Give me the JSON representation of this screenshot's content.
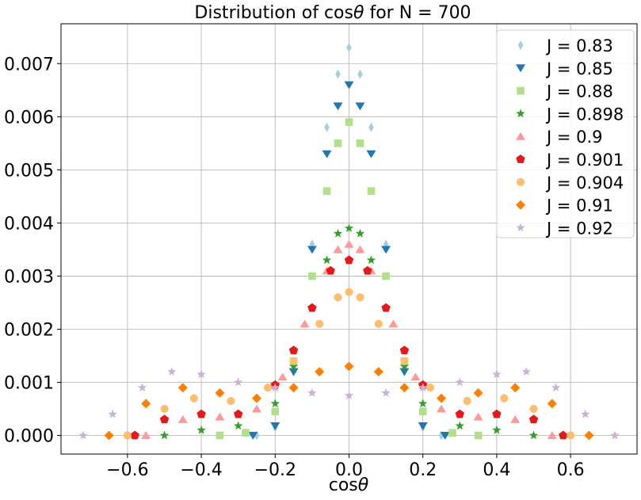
{
  "chart_data": {
    "type": "scatter",
    "title_prefix": "Distribution of  cos",
    "title_theta": "θ",
    "title_suffix": " for N =  700",
    "xlabel_prefix": "cos",
    "xlabel_theta": "θ",
    "ylabel": "",
    "xlim": [
      -0.78,
      0.78
    ],
    "ylim": [
      -0.00035,
      0.00775
    ],
    "x_ticks": [
      -0.6,
      -0.4,
      -0.2,
      0.0,
      0.2,
      0.4,
      0.6
    ],
    "x_tick_labels": [
      "−0.6",
      "−0.4",
      "−0.2",
      "0.0",
      "0.2",
      "0.4",
      "0.6"
    ],
    "y_ticks": [
      0.0,
      0.001,
      0.002,
      0.003,
      0.004,
      0.005,
      0.006,
      0.007
    ],
    "y_tick_labels": [
      "0.000",
      "0.001",
      "0.002",
      "0.003",
      "0.004",
      "0.005",
      "0.006",
      "0.007"
    ],
    "grid": true,
    "legend_position": "top-right",
    "series": [
      {
        "name": "J = 0.83",
        "color": "#a6cee3",
        "marker": "thin-diamond",
        "x": [
          -0.25,
          -0.2,
          -0.15,
          -0.1,
          -0.06,
          -0.03,
          0.0,
          0.03,
          0.06,
          0.1,
          0.15,
          0.2,
          0.25
        ],
        "y": [
          0.0,
          0.00015,
          0.0012,
          0.0036,
          0.0058,
          0.0068,
          0.0073,
          0.0068,
          0.0058,
          0.0036,
          0.0012,
          0.00015,
          0.0
        ]
      },
      {
        "name": "J = 0.85",
        "color": "#1f78b4",
        "marker": "triangle-down",
        "x": [
          -0.26,
          -0.2,
          -0.15,
          -0.1,
          -0.06,
          -0.03,
          0.0,
          0.03,
          0.06,
          0.1,
          0.15,
          0.2,
          0.26
        ],
        "y": [
          0.0,
          0.00018,
          0.0012,
          0.0035,
          0.0053,
          0.0062,
          0.0066,
          0.0062,
          0.0053,
          0.0035,
          0.0012,
          0.00018,
          0.0
        ]
      },
      {
        "name": "J = 0.88",
        "color": "#b2df8a",
        "marker": "square",
        "x": [
          -0.35,
          -0.28,
          -0.2,
          -0.15,
          -0.1,
          -0.06,
          -0.03,
          0.0,
          0.03,
          0.06,
          0.1,
          0.15,
          0.2,
          0.28,
          0.35
        ],
        "y": [
          0.0,
          5e-05,
          0.00045,
          0.0014,
          0.003,
          0.0046,
          0.0055,
          0.0059,
          0.0055,
          0.0046,
          0.003,
          0.0014,
          0.00045,
          5e-05,
          0.0
        ]
      },
      {
        "name": "J = 0.898",
        "color": "#33a02c",
        "marker": "star",
        "x": [
          -0.5,
          -0.4,
          -0.3,
          -0.2,
          -0.15,
          -0.1,
          -0.06,
          -0.03,
          0.0,
          0.03,
          0.06,
          0.1,
          0.15,
          0.2,
          0.3,
          0.4,
          0.5
        ],
        "y": [
          0.0,
          0.0001,
          0.00018,
          0.0006,
          0.0013,
          0.0024,
          0.0033,
          0.0038,
          0.0039,
          0.0038,
          0.0033,
          0.0024,
          0.0013,
          0.0006,
          0.00018,
          0.0001,
          0.0
        ]
      },
      {
        "name": "J = 0.9",
        "color": "#fb9a99",
        "marker": "triangle-up",
        "x": [
          -0.55,
          -0.45,
          -0.35,
          -0.25,
          -0.18,
          -0.12,
          -0.06,
          -0.03,
          0.0,
          0.03,
          0.06,
          0.12,
          0.18,
          0.25,
          0.35,
          0.45,
          0.55
        ],
        "y": [
          0.0,
          0.0003,
          0.00035,
          0.0005,
          0.0011,
          0.0021,
          0.0031,
          0.0035,
          0.0036,
          0.0035,
          0.0031,
          0.0021,
          0.0011,
          0.0005,
          0.00035,
          0.0003,
          0.0
        ]
      },
      {
        "name": "J = 0.901",
        "color": "#e31a1c",
        "marker": "pentagon",
        "x": [
          -0.58,
          -0.5,
          -0.4,
          -0.3,
          -0.2,
          -0.15,
          -0.1,
          -0.05,
          0.0,
          0.05,
          0.1,
          0.15,
          0.2,
          0.3,
          0.4,
          0.5,
          0.58
        ],
        "y": [
          0.0,
          0.0003,
          0.0004,
          0.0004,
          0.00095,
          0.0016,
          0.0024,
          0.0031,
          0.0033,
          0.0031,
          0.0024,
          0.0016,
          0.00095,
          0.0004,
          0.0004,
          0.0003,
          0.0
        ]
      },
      {
        "name": "J = 0.904",
        "color": "#fdbf6f",
        "marker": "circle",
        "x": [
          -0.6,
          -0.5,
          -0.42,
          -0.32,
          -0.22,
          -0.15,
          -0.08,
          -0.03,
          0.0,
          0.03,
          0.08,
          0.15,
          0.22,
          0.32,
          0.42,
          0.5,
          0.6
        ],
        "y": [
          0.0,
          0.0005,
          0.0007,
          0.00065,
          0.0009,
          0.0014,
          0.0021,
          0.0026,
          0.0027,
          0.0026,
          0.0021,
          0.0014,
          0.0009,
          0.00065,
          0.0007,
          0.0005,
          0.0
        ]
      },
      {
        "name": "J = 0.91",
        "color": "#ff7f00",
        "marker": "diamond",
        "x": [
          -0.65,
          -0.55,
          -0.45,
          -0.35,
          -0.25,
          -0.15,
          -0.08,
          0.0,
          0.08,
          0.15,
          0.25,
          0.35,
          0.45,
          0.55,
          0.65
        ],
        "y": [
          0.0,
          0.0006,
          0.0009,
          0.0008,
          0.0007,
          0.0009,
          0.0012,
          0.0013,
          0.0012,
          0.0009,
          0.0007,
          0.0008,
          0.0009,
          0.0006,
          0.0
        ]
      },
      {
        "name": "J = 0.92",
        "color": "#cab2d6",
        "marker": "star",
        "x": [
          -0.72,
          -0.64,
          -0.56,
          -0.48,
          -0.4,
          -0.3,
          -0.2,
          -0.1,
          0.0,
          0.1,
          0.2,
          0.3,
          0.4,
          0.48,
          0.56,
          0.64,
          0.72
        ],
        "y": [
          0.0,
          0.0004,
          0.0009,
          0.0012,
          0.00115,
          0.001,
          0.0009,
          0.0008,
          0.00075,
          0.0008,
          0.0009,
          0.001,
          0.00115,
          0.0012,
          0.0009,
          0.0004,
          0.0
        ]
      }
    ]
  }
}
